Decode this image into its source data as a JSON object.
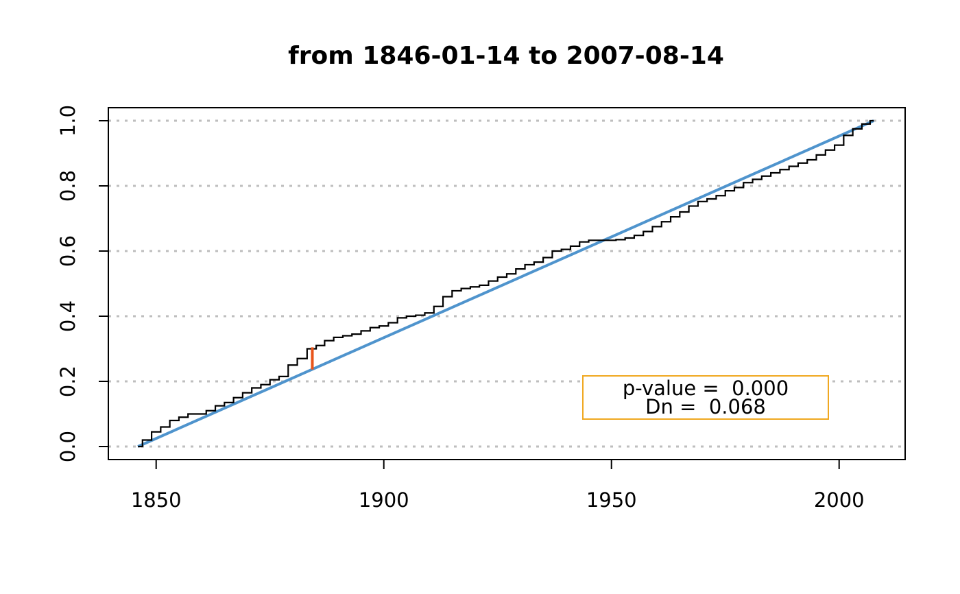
{
  "chart_data": {
    "type": "line",
    "title": "from 1846-01-14 to 2007-08-14",
    "xlabel": "",
    "ylabel": "",
    "xlim": [
      1839.5,
      2014.5
    ],
    "ylim": [
      -0.04,
      1.04
    ],
    "x_ticks": [
      1850,
      1900,
      1950,
      2000
    ],
    "x_tick_labels": [
      "1850",
      "1900",
      "1950",
      "2000"
    ],
    "y_ticks": [
      0.0,
      0.2,
      0.4,
      0.6,
      0.8,
      1.0
    ],
    "y_tick_labels": [
      "0.0",
      "0.2",
      "0.4",
      "0.6",
      "0.8",
      "1.0"
    ],
    "grid": "horizontal dotted at y ticks",
    "colors": {
      "empirical": "#000000",
      "uniform": "#4f94cd",
      "max_deviation": "#e8541a",
      "grid": "#bebebe",
      "legend_border": "#f0a820"
    },
    "series": [
      {
        "role": "empirical-cdf",
        "x": [
          1846.0,
          1848,
          1850,
          1852,
          1854,
          1856,
          1858,
          1860,
          1862,
          1864,
          1866,
          1868,
          1870,
          1872,
          1874,
          1876,
          1878,
          1880,
          1882,
          1884.3,
          1886,
          1888,
          1890,
          1892,
          1894,
          1896,
          1898,
          1900,
          1902,
          1904,
          1906,
          1908,
          1910,
          1912,
          1914,
          1916,
          1918,
          1920,
          1922,
          1924,
          1926,
          1928,
          1930,
          1932,
          1934,
          1936,
          1938,
          1940,
          1942,
          1944,
          1946,
          1948,
          1950,
          1952,
          1954,
          1956,
          1958,
          1960,
          1962,
          1964,
          1966,
          1968,
          1970,
          1972,
          1974,
          1976,
          1978,
          1980,
          1982,
          1984,
          1986,
          1988,
          1990,
          1992,
          1994,
          1996,
          1998,
          2000,
          2002,
          2004,
          2006,
          2007.6
        ],
        "y": [
          0.0,
          0.02,
          0.045,
          0.06,
          0.08,
          0.09,
          0.1,
          0.1,
          0.11,
          0.125,
          0.135,
          0.15,
          0.165,
          0.18,
          0.19,
          0.205,
          0.215,
          0.25,
          0.27,
          0.3,
          0.31,
          0.325,
          0.335,
          0.34,
          0.345,
          0.355,
          0.365,
          0.37,
          0.38,
          0.395,
          0.4,
          0.403,
          0.41,
          0.43,
          0.46,
          0.478,
          0.485,
          0.49,
          0.495,
          0.508,
          0.52,
          0.53,
          0.545,
          0.558,
          0.566,
          0.58,
          0.6,
          0.605,
          0.615,
          0.628,
          0.633,
          0.633,
          0.633,
          0.635,
          0.64,
          0.648,
          0.66,
          0.675,
          0.69,
          0.705,
          0.72,
          0.738,
          0.752,
          0.76,
          0.77,
          0.785,
          0.795,
          0.81,
          0.82,
          0.83,
          0.84,
          0.85,
          0.86,
          0.87,
          0.88,
          0.895,
          0.91,
          0.925,
          0.955,
          0.975,
          0.99,
          1.0
        ]
      },
      {
        "role": "uniform-cdf",
        "x": [
          1846.0,
          2007.6
        ],
        "y": [
          0.0,
          1.0
        ]
      }
    ],
    "max_deviation": {
      "x": 1884.3,
      "y_from": 0.2365,
      "y_to": 0.3045
    },
    "legend": {
      "position": "bottom-right",
      "lines": [
        "p-value =  0.000",
        "Dn =  0.068"
      ]
    }
  }
}
